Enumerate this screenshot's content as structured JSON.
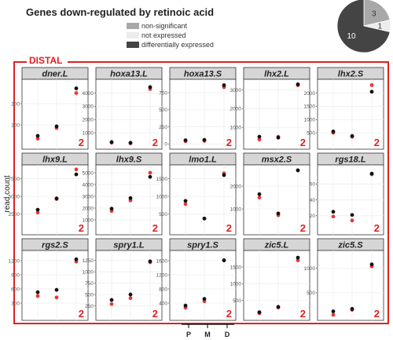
{
  "colors": {
    "series_black": "#111111",
    "series_red": "#e8383a",
    "region_border": "#e02020",
    "panel_header": "#d6d6d6",
    "pie_non_significant": "#a8a8a8",
    "pie_not_expressed": "#ececec",
    "pie_differentially_expressed": "#444444"
  },
  "chart_data": [
    {
      "type": "pie",
      "title": "Genes down-regulated by retinoic acid",
      "slices": [
        {
          "label": "non-significant",
          "value": 3,
          "color": "#a8a8a8"
        },
        {
          "label": "not expressed",
          "value": 1,
          "color": "#ececec"
        },
        {
          "label": "differentially expressed",
          "value": 10,
          "color": "#444444"
        }
      ]
    },
    {
      "type": "scatter",
      "region": "DISTAL",
      "ylabel": "read count",
      "x": [
        "P",
        "M",
        "D"
      ],
      "panels": [
        {
          "gene": "dner.L",
          "yticks": [
            100,
            200
          ],
          "ylim": [
            0,
            300
          ],
          "badge": "2",
          "black": [
            48,
            93,
            272
          ],
          "red": [
            35,
            85,
            250
          ]
        },
        {
          "gene": "hoxa13.L",
          "yticks": [
            1000,
            2000,
            3000,
            4000
          ],
          "ylim": [
            0,
            4800
          ],
          "badge": "2",
          "black": [
            300,
            250,
            4450
          ],
          "red": [
            250,
            200,
            4300
          ]
        },
        {
          "gene": "hoxa13.S",
          "yticks": [
            0,
            250,
            500,
            750
          ],
          "ylim": [
            -30,
            900
          ],
          "badge": "2",
          "black": [
            55,
            60,
            860
          ],
          "red": [
            40,
            45,
            830
          ]
        },
        {
          "gene": "lhx2.L",
          "yticks": [
            1000,
            2000,
            3000
          ],
          "ylim": [
            0,
            3400
          ],
          "badge": "2",
          "black": [
            500,
            450,
            3300
          ],
          "red": [
            350,
            500,
            3250
          ]
        },
        {
          "gene": "lhx2.S",
          "yticks": [
            500,
            1000,
            1500,
            2000
          ],
          "ylim": [
            0,
            2400
          ],
          "badge": "2",
          "black": [
            550,
            380,
            2050
          ],
          "red": [
            500,
            350,
            2300
          ]
        },
        {
          "gene": "lhx9.L",
          "yticks": [
            2500,
            5000,
            7500
          ],
          "ylim": [
            0,
            9000
          ],
          "badge": "2",
          "black": [
            3100,
            4700,
            8100
          ],
          "red": [
            2700,
            4600,
            8800
          ]
        },
        {
          "gene": "lhx9.S",
          "yticks": [
            1000,
            2000,
            3000,
            4000,
            5000
          ],
          "ylim": [
            0,
            5400
          ],
          "badge": "2",
          "black": [
            1950,
            2850,
            4650
          ],
          "red": [
            1750,
            2650,
            5000
          ]
        },
        {
          "gene": "lmo1.L",
          "yticks": [
            500,
            1000,
            1500
          ],
          "ylim": [
            0,
            1800
          ],
          "badge": "2",
          "black": [
            870,
            370,
            1600
          ],
          "red": [
            780,
            370,
            1650
          ]
        },
        {
          "gene": "msx2.S",
          "yticks": [
            1000,
            2000
          ],
          "ylim": [
            0,
            2800
          ],
          "badge": "2",
          "black": [
            1650,
            800,
            2700
          ],
          "red": [
            1500,
            720,
            2700
          ]
        },
        {
          "gene": "rgs18.L",
          "yticks": [
            20,
            40,
            60
          ],
          "ylim": [
            0,
            80
          ],
          "badge": "2",
          "black": [
            25,
            21,
            73
          ],
          "red": [
            19,
            14,
            72
          ]
        },
        {
          "gene": "rgs2.S",
          "yticks": [
            300,
            600,
            900,
            1200
          ],
          "ylim": [
            0,
            1350
          ],
          "badge": "2",
          "black": [
            530,
            580,
            1230
          ],
          "red": [
            450,
            420,
            1180
          ]
        },
        {
          "gene": "spry1.L",
          "yticks": [
            250,
            500,
            750,
            1000,
            1250
          ],
          "ylim": [
            0,
            1400
          ],
          "badge": "2",
          "black": [
            380,
            500,
            1230
          ],
          "red": [
            290,
            420,
            1210
          ]
        },
        {
          "gene": "spry1.S",
          "yticks": [
            400,
            800,
            1200,
            1600
          ],
          "ylim": [
            0,
            1800
          ],
          "badge": "2",
          "black": [
            330,
            520,
            1610
          ],
          "red": [
            270,
            450,
            1610
          ]
        },
        {
          "gene": "zic5.L",
          "yticks": [
            500,
            1000,
            1500
          ],
          "ylim": [
            0,
            1900
          ],
          "badge": "2",
          "black": [
            150,
            310,
            1780
          ],
          "red": [
            120,
            290,
            1700
          ]
        },
        {
          "gene": "zic5.S",
          "yticks": [
            500,
            1000
          ],
          "ylim": [
            0,
            1300
          ],
          "badge": "2",
          "black": [
            120,
            170,
            1080
          ],
          "red": [
            50,
            150,
            1040
          ]
        }
      ]
    }
  ]
}
